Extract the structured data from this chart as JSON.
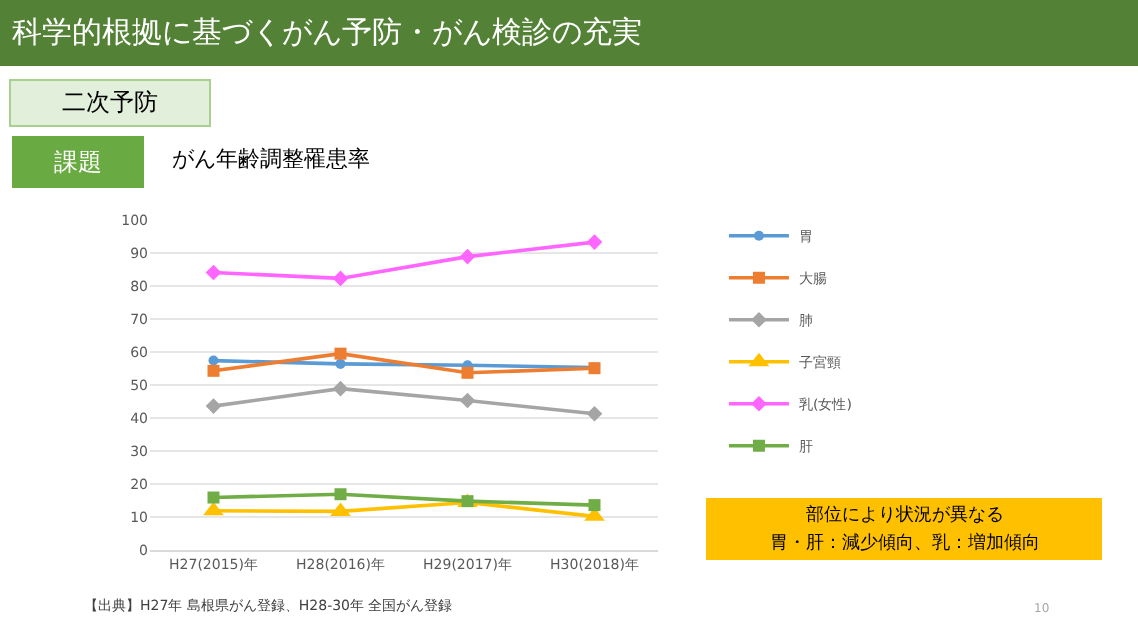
{
  "chart_data": {
    "type": "line",
    "title": "科学的根拠に基づくがん予防・がん検診の充実",
    "subtitle": "がん年齢調整罹患率",
    "categories": [
      "H27(2015)年",
      "H28(2016)年",
      "H29(2017)年",
      "H30(2018)年"
    ],
    "series": [
      {
        "name": "胃",
        "color": "#5b9bd5",
        "marker": "circle",
        "values": [
          57.4,
          56.4,
          56.0,
          55.3
        ]
      },
      {
        "name": "大腸",
        "color": "#ed7d31",
        "marker": "square",
        "values": [
          54.3,
          59.5,
          53.7,
          55.1
        ]
      },
      {
        "name": "肺",
        "color": "#a5a5a5",
        "marker": "diamond",
        "values": [
          43.6,
          48.9,
          45.3,
          41.3
        ]
      },
      {
        "name": "子宮頸",
        "color": "#ffc000",
        "marker": "triangle",
        "values": [
          11.9,
          11.7,
          14.4,
          10.2
        ]
      },
      {
        "name": "乳(女性)",
        "color": "#ff66ff",
        "marker": "diamond",
        "values": [
          84.1,
          82.3,
          88.9,
          93.3
        ]
      },
      {
        "name": "肝",
        "color": "#70ad47",
        "marker": "square",
        "values": [
          15.9,
          16.9,
          14.8,
          13.6
        ]
      }
    ],
    "ylim": [
      0,
      100
    ],
    "yticks": [
      0,
      10,
      20,
      30,
      40,
      50,
      60,
      70,
      80,
      90,
      100
    ],
    "grid": "y",
    "legend": "right",
    "line_style": "solid",
    "annotations": [
      "二次予防",
      "課題",
      "部位により状況が異なる",
      "胃・肝：減少傾向、乳：増加傾向",
      "【出典】H27年 島根県がん登録、H28-30年 全国がん登録",
      "10"
    ]
  }
}
